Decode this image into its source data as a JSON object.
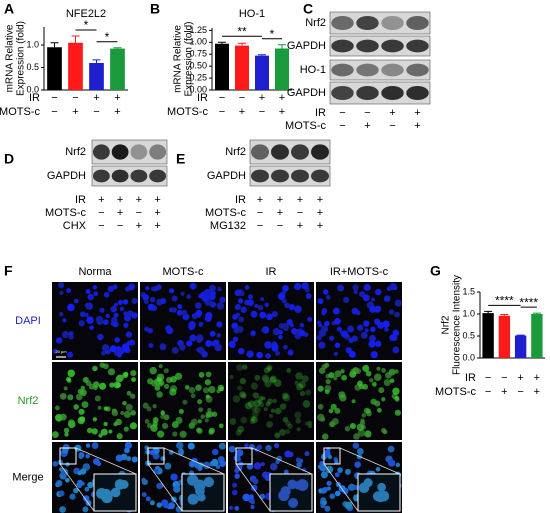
{
  "chart_data": [
    {
      "panel": "A",
      "type": "bar",
      "title": "NFE2L2",
      "ylabel": [
        "mRNA Relative",
        "Expression (fold)"
      ],
      "values": [
        0.95,
        1.05,
        0.6,
        0.92
      ],
      "errors": [
        0.1,
        0.15,
        0.07,
        0.02
      ],
      "colors": [
        "#000000",
        "#ff1a1a",
        "#1f1fd0",
        "#1a9a3a"
      ],
      "ylim": [
        0,
        1.4
      ],
      "yticks": [
        {
          "value": 0,
          "label": "0.0"
        },
        {
          "value": 0.5,
          "label": "0.5"
        },
        {
          "value": 1,
          "label": "1.0"
        }
      ],
      "annotations": [
        "*",
        "*"
      ],
      "treatments": [
        {
          "name": "IR",
          "signs": [
            "−",
            "−",
            "+",
            "+"
          ]
        },
        {
          "name": "MOTS-c",
          "signs": [
            "−",
            "+",
            "−",
            "+"
          ]
        }
      ]
    },
    {
      "panel": "B",
      "type": "bar",
      "title": "HO-1",
      "ylabel": [
        "mRNA Relative",
        "Expression (fold)"
      ],
      "values": [
        0.97,
        0.93,
        0.72,
        0.87
      ],
      "errors": [
        0.03,
        0.05,
        0.02,
        0.08
      ],
      "colors": [
        "#000000",
        "#ff1a1a",
        "#1f1fd0",
        "#1a9a3a"
      ],
      "ylim": [
        0,
        1.3
      ],
      "yticks": [
        {
          "value": 0,
          "label": "0.00"
        },
        {
          "value": 0.25,
          "label": "0.25"
        },
        {
          "value": 0.5,
          "label": "0.50"
        },
        {
          "value": 0.75,
          "label": "0.75"
        },
        {
          "value": 1,
          "label": "1.00"
        },
        {
          "value": 1.25,
          "label": "1.25"
        }
      ],
      "annotations": [
        "**",
        "*"
      ],
      "treatments": [
        {
          "name": "IR",
          "signs": [
            "−",
            "−",
            "+",
            "+"
          ]
        },
        {
          "name": "MOTS-c",
          "signs": [
            "−",
            "+",
            "−",
            "+"
          ]
        }
      ]
    },
    {
      "panel": "G",
      "type": "bar",
      "ylabel": [
        "Nrf2",
        "Fluorescence Intensity"
      ],
      "values": [
        1.02,
        0.96,
        0.51,
        1.0
      ],
      "errors": [
        0.04,
        0.03,
        0.01,
        0.02
      ],
      "colors": [
        "#000000",
        "#ff1a1a",
        "#1f1fd0",
        "#1a9a3a"
      ],
      "ylim": [
        0,
        1.5
      ],
      "yticks": [
        {
          "value": 0,
          "label": "0.0"
        },
        {
          "value": 0.5,
          "label": "0.5"
        },
        {
          "value": 1,
          "label": "1.0"
        },
        {
          "value": 1.5,
          "label": "1.5"
        }
      ],
      "annotations": [
        "****",
        "****"
      ],
      "treatments": [
        {
          "name": "IR",
          "signs": [
            "−",
            "−",
            "+",
            "+"
          ]
        },
        {
          "name": "MOTS-c",
          "signs": [
            "−",
            "+",
            "−",
            "+"
          ]
        }
      ]
    }
  ],
  "blots": [
    {
      "panel": "C",
      "rows": [
        "Nrf2",
        "GAPDH",
        "HO-1",
        "GAPDH"
      ],
      "treatments": [
        {
          "name": "IR",
          "signs": [
            "−",
            "−",
            "+",
            "+"
          ]
        },
        {
          "name": "MOTS-c",
          "signs": [
            "−",
            "+",
            "−",
            "+"
          ]
        }
      ]
    },
    {
      "panel": "D",
      "rows": [
        "Nrf2",
        "GAPDH"
      ],
      "treatments": [
        {
          "name": "IR",
          "signs": [
            "+",
            "+",
            "+",
            "+"
          ]
        },
        {
          "name": "MOTS-c",
          "signs": [
            "−",
            "+",
            "−",
            "+"
          ]
        },
        {
          "name": "CHX",
          "signs": [
            "−",
            "−",
            "+",
            "+"
          ]
        }
      ]
    },
    {
      "panel": "E",
      "rows": [
        "Nrf2",
        "GAPDH"
      ],
      "treatments": [
        {
          "name": "IR",
          "signs": [
            "+",
            "+",
            "+",
            "+"
          ]
        },
        {
          "name": "MOTS-c",
          "signs": [
            "−",
            "+",
            "−",
            "+"
          ]
        },
        {
          "name": "MG132",
          "signs": [
            "−",
            "−",
            "+",
            "+"
          ]
        }
      ]
    }
  ],
  "microscopy": {
    "panel": "F",
    "columns": [
      "Norma",
      "MOTS-c",
      "IR",
      "IR+MOTS-c"
    ],
    "rows": [
      "DAPI",
      "Nrf2",
      "Merge"
    ],
    "scale_bar": "20 μm"
  }
}
